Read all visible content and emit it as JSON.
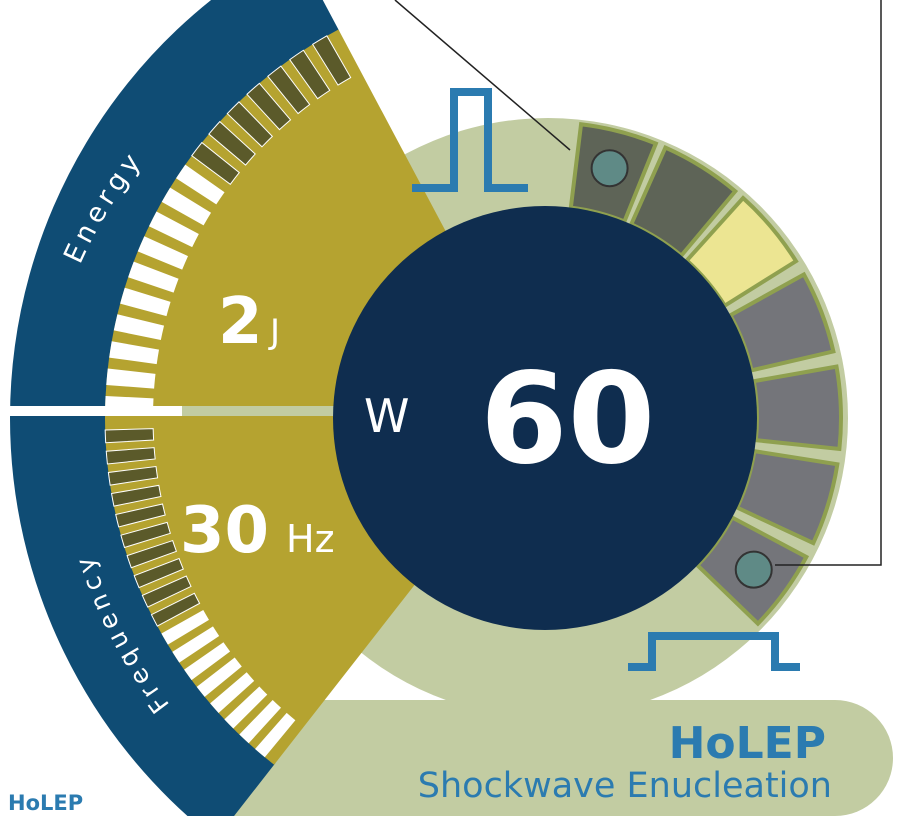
{
  "colors": {
    "navy": "#0f2d4f",
    "blue_band": "#0f4c74",
    "olive": "#b5a330",
    "sage": "#c2cca2",
    "pulse_blue": "#2b7bb0",
    "segment_dark": "#5e6457",
    "segment_grey": "#74757a",
    "segment_highlight": "#ece592",
    "segment_border": "#8fa04f",
    "white": "#ffffff"
  },
  "energy": {
    "label": "Energy",
    "value": "2",
    "unit": "J",
    "bar_count": 17,
    "active_bars": 10
  },
  "frequency": {
    "label": "Frequency",
    "value": "30",
    "unit": "Hz",
    "bar_count": 18,
    "active_bars": 8
  },
  "power": {
    "unit": "W",
    "value": "60"
  },
  "mode": {
    "title": "HoLEP",
    "subtitle": "Shockwave Enucleation"
  },
  "corner_label": "HoLEP",
  "pulse_segments": {
    "count": 7,
    "highlighted_index": 2,
    "first_marker_index": 0,
    "last_marker_index": 6
  }
}
